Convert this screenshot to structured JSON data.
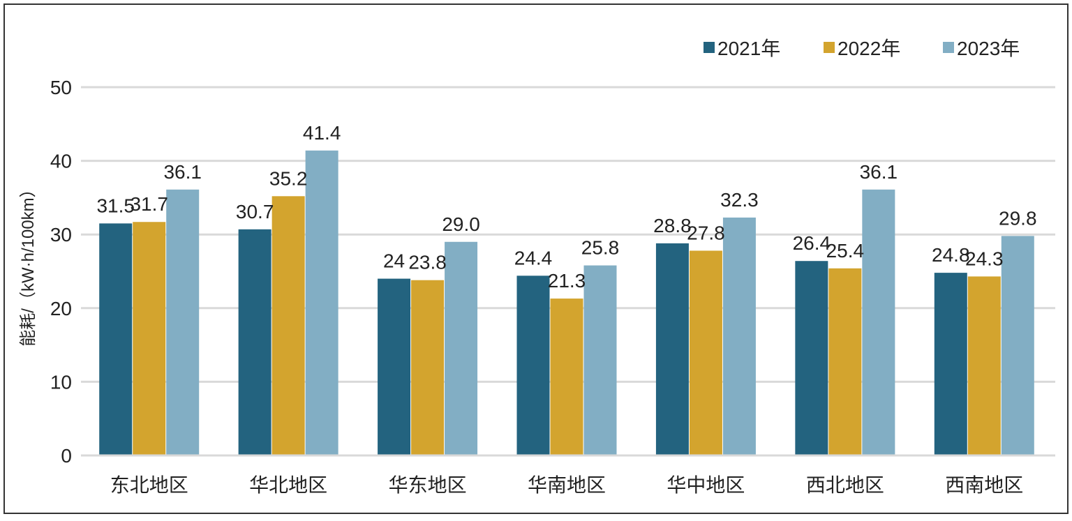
{
  "chart_data": {
    "type": "bar",
    "ylabel": "能耗/（kW·h/100km）",
    "ylim": [
      0,
      50
    ],
    "yticks": [
      0,
      10,
      20,
      30,
      40,
      50
    ],
    "grid": true,
    "legend_position": "top-right",
    "categories": [
      "东北地区",
      "华北地区",
      "华东地区",
      "华南地区",
      "华中地区",
      "西北地区",
      "西南地区"
    ],
    "series": [
      {
        "name": "2021年",
        "color": "#23637F",
        "values": [
          31.5,
          30.7,
          24,
          24.4,
          28.8,
          26.4,
          24.8
        ],
        "labels": [
          "31.5",
          "30.7",
          "24",
          "24.4",
          "28.8",
          "26.4",
          "24.8"
        ]
      },
      {
        "name": "2022年",
        "color": "#D3A42E",
        "values": [
          31.7,
          35.2,
          23.8,
          21.3,
          27.8,
          25.4,
          24.3
        ],
        "labels": [
          "31.7",
          "35.2",
          "23.8",
          "21.3",
          "27.8",
          "25.4",
          "24.3"
        ]
      },
      {
        "name": "2023年",
        "color": "#82AEC4",
        "values": [
          36.1,
          41.4,
          29.0,
          25.8,
          32.3,
          36.1,
          29.8
        ],
        "labels": [
          "36.1",
          "41.4",
          "29.0",
          "25.8",
          "32.3",
          "36.1",
          "29.8"
        ]
      }
    ]
  }
}
